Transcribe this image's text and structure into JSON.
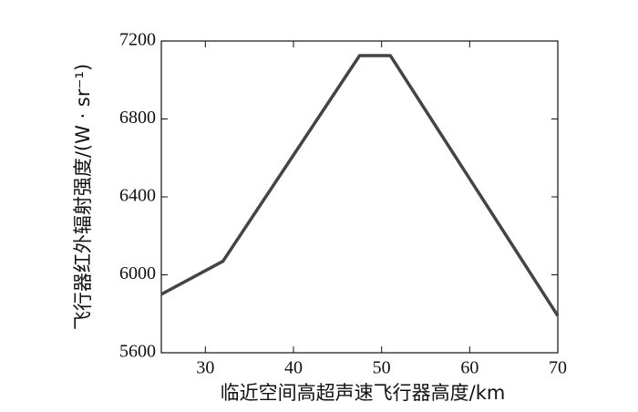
{
  "chart_data": {
    "type": "line",
    "xlabel": "临近空间高超声速飞行器高度/km",
    "ylabel": "飞行器红外辐射强度/(W · sr⁻¹)",
    "x": [
      25,
      32,
      47.5,
      51,
      70
    ],
    "series": [
      {
        "color": "#444444",
        "values": [
          5900,
          6070,
          7125,
          7125,
          5790
        ]
      }
    ],
    "xlim": [
      25,
      70
    ],
    "xticks": [
      30,
      40,
      50,
      60,
      70
    ],
    "ylim": [
      5600,
      7200
    ],
    "yticks": [
      5600,
      6000,
      6400,
      6800,
      7200
    ]
  }
}
